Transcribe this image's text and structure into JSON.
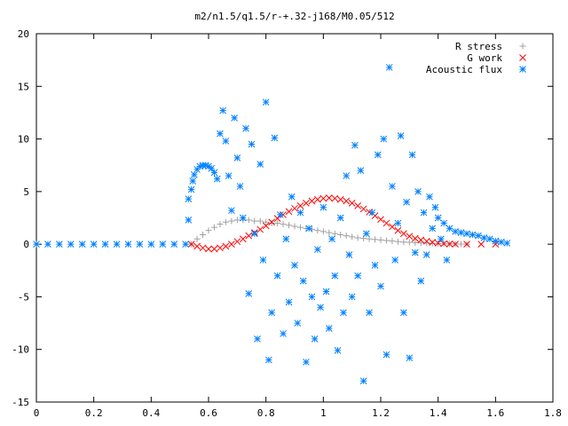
{
  "chart_data": {
    "type": "scatter",
    "title": "m2/n1.5/q1.5/r-+.32-j168/M0.05/512",
    "xlabel": "",
    "ylabel": "",
    "xlim": [
      0,
      1.8
    ],
    "ylim": [
      -15,
      20
    ],
    "xticks": [
      "0",
      "0.2",
      "0.4",
      "0.6",
      "0.8",
      "1",
      "1.2",
      "1.4",
      "1.6",
      "1.8"
    ],
    "yticks": [
      "-15",
      "-10",
      "-5",
      "0",
      "5",
      "10",
      "15",
      "20"
    ],
    "grid": false,
    "legend_position": "top-right",
    "series": [
      {
        "name": "R stress",
        "marker": "+",
        "color": "#a0a0a0",
        "points": [
          [
            0.54,
            0.0
          ],
          [
            0.56,
            0.5
          ],
          [
            0.58,
            0.9
          ],
          [
            0.6,
            1.3
          ],
          [
            0.62,
            1.6
          ],
          [
            0.64,
            1.9
          ],
          [
            0.66,
            2.1
          ],
          [
            0.68,
            2.2
          ],
          [
            0.7,
            2.3
          ],
          [
            0.72,
            2.3
          ],
          [
            0.74,
            2.3
          ],
          [
            0.76,
            2.2
          ],
          [
            0.78,
            2.2
          ],
          [
            0.8,
            2.1
          ],
          [
            0.82,
            2.0
          ],
          [
            0.84,
            2.0
          ],
          [
            0.86,
            1.9
          ],
          [
            0.88,
            1.8
          ],
          [
            0.9,
            1.7
          ],
          [
            0.92,
            1.6
          ],
          [
            0.94,
            1.5
          ],
          [
            0.96,
            1.4
          ],
          [
            0.98,
            1.3
          ],
          [
            1.0,
            1.2
          ],
          [
            1.02,
            1.1
          ],
          [
            1.04,
            1.0
          ],
          [
            1.06,
            0.9
          ],
          [
            1.08,
            0.8
          ],
          [
            1.1,
            0.7
          ],
          [
            1.12,
            0.6
          ],
          [
            1.14,
            0.55
          ],
          [
            1.16,
            0.5
          ],
          [
            1.18,
            0.45
          ],
          [
            1.2,
            0.4
          ],
          [
            1.22,
            0.35
          ],
          [
            1.24,
            0.3
          ],
          [
            1.26,
            0.25
          ],
          [
            1.28,
            0.2
          ],
          [
            1.3,
            0.18
          ],
          [
            1.32,
            0.15
          ],
          [
            1.34,
            0.12
          ],
          [
            1.36,
            0.1
          ],
          [
            1.38,
            0.08
          ],
          [
            1.4,
            0.06
          ],
          [
            1.42,
            0.04
          ],
          [
            1.44,
            0.03
          ],
          [
            1.46,
            0.02
          ],
          [
            1.48,
            0.01
          ],
          [
            1.5,
            0.0
          ]
        ]
      },
      {
        "name": "G work",
        "marker": "x",
        "color": "#ff0000",
        "points": [
          [
            0.54,
            0.0
          ],
          [
            0.56,
            -0.2
          ],
          [
            0.58,
            -0.35
          ],
          [
            0.6,
            -0.45
          ],
          [
            0.62,
            -0.45
          ],
          [
            0.64,
            -0.35
          ],
          [
            0.66,
            -0.2
          ],
          [
            0.68,
            0.0
          ],
          [
            0.7,
            0.25
          ],
          [
            0.72,
            0.5
          ],
          [
            0.74,
            0.8
          ],
          [
            0.76,
            1.1
          ],
          [
            0.78,
            1.4
          ],
          [
            0.8,
            1.75
          ],
          [
            0.82,
            2.1
          ],
          [
            0.84,
            2.45
          ],
          [
            0.86,
            2.8
          ],
          [
            0.88,
            3.1
          ],
          [
            0.9,
            3.4
          ],
          [
            0.92,
            3.65
          ],
          [
            0.94,
            3.9
          ],
          [
            0.96,
            4.1
          ],
          [
            0.98,
            4.25
          ],
          [
            1.0,
            4.35
          ],
          [
            1.02,
            4.4
          ],
          [
            1.04,
            4.35
          ],
          [
            1.06,
            4.25
          ],
          [
            1.08,
            4.1
          ],
          [
            1.1,
            3.9
          ],
          [
            1.12,
            3.65
          ],
          [
            1.14,
            3.35
          ],
          [
            1.16,
            3.05
          ],
          [
            1.18,
            2.7
          ],
          [
            1.2,
            2.35
          ],
          [
            1.22,
            2.0
          ],
          [
            1.24,
            1.65
          ],
          [
            1.26,
            1.3
          ],
          [
            1.28,
            1.0
          ],
          [
            1.3,
            0.75
          ],
          [
            1.32,
            0.55
          ],
          [
            1.34,
            0.4
          ],
          [
            1.36,
            0.28
          ],
          [
            1.38,
            0.18
          ],
          [
            1.4,
            0.1
          ],
          [
            1.42,
            0.05
          ],
          [
            1.44,
            0.02
          ],
          [
            1.46,
            0.0
          ],
          [
            1.5,
            0.0
          ],
          [
            1.55,
            0.0
          ],
          [
            1.6,
            0.0
          ]
        ]
      },
      {
        "name": "Acoustic flux",
        "marker": "*",
        "color": "#0080ff",
        "points": [
          [
            0.0,
            0.0
          ],
          [
            0.04,
            0.0
          ],
          [
            0.08,
            0.0
          ],
          [
            0.12,
            0.0
          ],
          [
            0.16,
            0.0
          ],
          [
            0.2,
            0.0
          ],
          [
            0.24,
            0.0
          ],
          [
            0.28,
            0.0
          ],
          [
            0.32,
            0.0
          ],
          [
            0.36,
            0.0
          ],
          [
            0.4,
            0.0
          ],
          [
            0.44,
            0.0
          ],
          [
            0.48,
            0.0
          ],
          [
            0.52,
            0.0
          ],
          [
            0.53,
            2.3
          ],
          [
            0.53,
            4.3
          ],
          [
            0.54,
            5.2
          ],
          [
            0.545,
            6.0
          ],
          [
            0.55,
            6.6
          ],
          [
            0.56,
            7.1
          ],
          [
            0.57,
            7.4
          ],
          [
            0.58,
            7.5
          ],
          [
            0.59,
            7.5
          ],
          [
            0.6,
            7.4
          ],
          [
            0.61,
            7.2
          ],
          [
            0.62,
            6.8
          ],
          [
            0.63,
            6.2
          ],
          [
            0.64,
            10.5
          ],
          [
            0.65,
            12.7
          ],
          [
            0.66,
            9.8
          ],
          [
            0.67,
            6.5
          ],
          [
            0.68,
            3.2
          ],
          [
            0.69,
            12.0
          ],
          [
            0.7,
            8.2
          ],
          [
            0.71,
            5.5
          ],
          [
            0.72,
            2.5
          ],
          [
            0.73,
            11.0
          ],
          [
            0.74,
            -4.7
          ],
          [
            0.75,
            9.5
          ],
          [
            0.76,
            1.0
          ],
          [
            0.77,
            -9.0
          ],
          [
            0.78,
            7.6
          ],
          [
            0.79,
            -1.5
          ],
          [
            0.8,
            13.5
          ],
          [
            0.81,
            -11.0
          ],
          [
            0.82,
            -6.5
          ],
          [
            0.83,
            10.1
          ],
          [
            0.84,
            -3.0
          ],
          [
            0.85,
            2.8
          ],
          [
            0.86,
            -8.5
          ],
          [
            0.87,
            0.5
          ],
          [
            0.88,
            -5.5
          ],
          [
            0.89,
            4.5
          ],
          [
            0.9,
            -2.0
          ],
          [
            0.91,
            -7.5
          ],
          [
            0.92,
            3.0
          ],
          [
            0.93,
            -3.5
          ],
          [
            0.94,
            -11.2
          ],
          [
            0.95,
            1.5
          ],
          [
            0.96,
            -5.0
          ],
          [
            0.97,
            -9.0
          ],
          [
            0.98,
            -0.5
          ],
          [
            0.99,
            -6.0
          ],
          [
            1.0,
            3.5
          ],
          [
            1.01,
            -4.5
          ],
          [
            1.02,
            -8.0
          ],
          [
            1.03,
            0.5
          ],
          [
            1.04,
            -3.0
          ],
          [
            1.05,
            -10.1
          ],
          [
            1.06,
            2.5
          ],
          [
            1.07,
            -6.5
          ],
          [
            1.08,
            6.5
          ],
          [
            1.09,
            -1.0
          ],
          [
            1.1,
            -5.0
          ],
          [
            1.11,
            9.4
          ],
          [
            1.12,
            -3.0
          ],
          [
            1.13,
            7.0
          ],
          [
            1.14,
            -13.0
          ],
          [
            1.15,
            1.0
          ],
          [
            1.16,
            -6.5
          ],
          [
            1.17,
            3.0
          ],
          [
            1.18,
            -2.0
          ],
          [
            1.19,
            8.5
          ],
          [
            1.2,
            -4.0
          ],
          [
            1.21,
            10.0
          ],
          [
            1.22,
            -10.5
          ],
          [
            1.23,
            16.8
          ],
          [
            1.24,
            5.5
          ],
          [
            1.25,
            -1.5
          ],
          [
            1.26,
            2.0
          ],
          [
            1.27,
            10.3
          ],
          [
            1.28,
            -6.5
          ],
          [
            1.29,
            4.0
          ],
          [
            1.3,
            -10.8
          ],
          [
            1.31,
            8.5
          ],
          [
            1.32,
            -0.8
          ],
          [
            1.33,
            5.0
          ],
          [
            1.34,
            -3.5
          ],
          [
            1.35,
            3.0
          ],
          [
            1.36,
            -1.0
          ],
          [
            1.37,
            4.5
          ],
          [
            1.38,
            1.5
          ],
          [
            1.39,
            3.5
          ],
          [
            1.4,
            2.5
          ],
          [
            1.41,
            0.5
          ],
          [
            1.42,
            2.0
          ],
          [
            1.43,
            -1.5
          ],
          [
            1.44,
            1.5
          ],
          [
            1.46,
            1.2
          ],
          [
            1.48,
            1.1
          ],
          [
            1.5,
            1.0
          ],
          [
            1.52,
            0.9
          ],
          [
            1.54,
            0.8
          ],
          [
            1.56,
            0.6
          ],
          [
            1.58,
            0.5
          ],
          [
            1.6,
            0.3
          ],
          [
            1.62,
            0.2
          ],
          [
            1.64,
            0.1
          ]
        ]
      }
    ]
  }
}
